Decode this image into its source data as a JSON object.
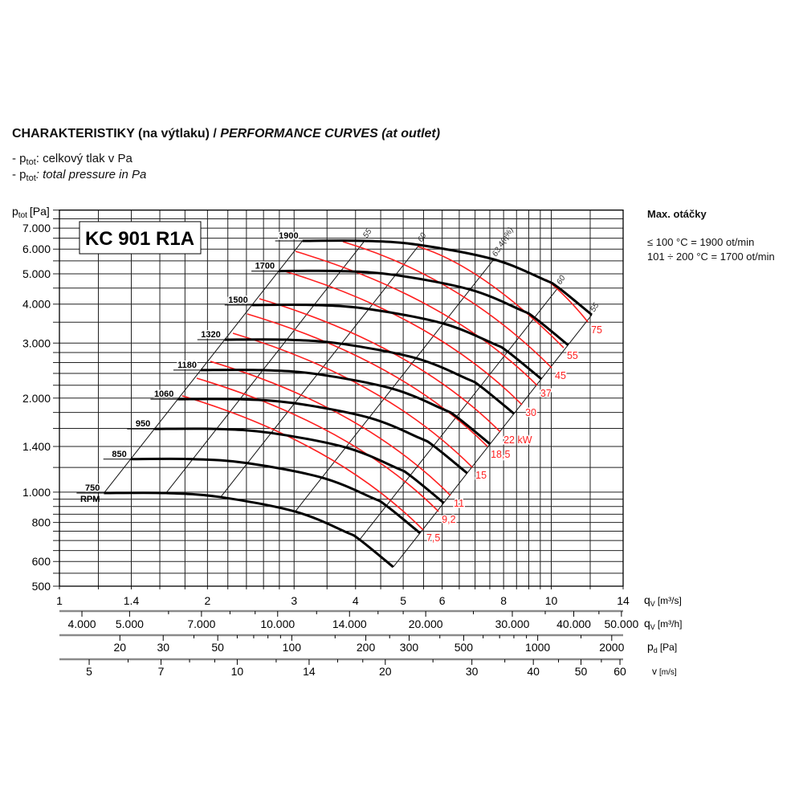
{
  "header": {
    "title_cz": "CHARAKTERISTIKY (na výtlaku) / ",
    "title_en": "PERFORMANCE CURVES (at outlet)",
    "legend_prefix": "- p",
    "legend_sub": "tot",
    "legend_cz": ": celkový tlak v Pa",
    "legend_en": ": total pressure in Pa"
  },
  "max_speed": {
    "title": "Max. otáčky",
    "line1": "≤ 100 °C = 1900 ot/min",
    "line2": "101 ÷ 200 °C = 1700 ot/min"
  },
  "chart_data": {
    "type": "line",
    "title": "KC 901 R1A",
    "colors": {
      "rpm_curve": "#000000",
      "power_curve": "#ff1f1f",
      "grid": "#222222",
      "axis_bar": "#8a8a8a"
    },
    "y_axis": {
      "label": "p",
      "label_sub": "tot",
      "label_unit": "[Pa]",
      "scale": "log",
      "range": [
        500,
        8000
      ],
      "ticks": [
        500,
        600,
        800,
        1000,
        1400,
        2000,
        3000,
        4000,
        5000,
        6000,
        7000
      ],
      "tick_labels": [
        "500",
        "600",
        "800",
        "1.000",
        "1.400",
        "2.000",
        "3.000",
        "4.000",
        "5.000",
        "6.000",
        "7.000"
      ]
    },
    "grid": {
      "on": true,
      "p_lines": [
        500,
        550,
        600,
        650,
        700,
        750,
        800,
        850,
        900,
        950,
        1000,
        1200,
        1400,
        1600,
        1800,
        2000,
        2200,
        2400,
        2600,
        2800,
        3000,
        3500,
        4000,
        4500,
        5000,
        5500,
        6000,
        6500,
        7000,
        7500,
        8000
      ],
      "q_lines": [
        1,
        1.2,
        1.4,
        1.6,
        1.8,
        2,
        2.2,
        2.4,
        2.6,
        2.8,
        3,
        3.5,
        4,
        4.5,
        5,
        5.5,
        6,
        6.5,
        7,
        7.5,
        8,
        8.5,
        9,
        9.5,
        10,
        12,
        14
      ]
    },
    "x_axis": {
      "label": "q",
      "label_sub": "V",
      "label_unit": "[m³/s]",
      "scale": "log",
      "range": [
        1,
        14
      ],
      "ticks": [
        1,
        1.4,
        2,
        3,
        4,
        5,
        6,
        8,
        10,
        14
      ],
      "tick_labels": [
        "1",
        "1.4",
        "2",
        "3",
        "4",
        "5",
        "6",
        "8",
        "10",
        "14"
      ]
    },
    "secondary_axes": {
      "flow_m3h": {
        "label": "q",
        "label_sub": "V",
        "label_unit": "[m³/h]",
        "ticks": [
          4000,
          5000,
          6000,
          7000,
          8000,
          9000,
          10000,
          12000,
          14000,
          16000,
          18000,
          20000,
          25000,
          30000,
          35000,
          40000,
          45000,
          50000
        ],
        "labeled": [
          4000,
          5000,
          7000,
          10000,
          14000,
          20000,
          30000,
          40000,
          50000
        ],
        "tick_labels": [
          "4.000",
          "5.000",
          "7.000",
          "10.000",
          "14.000",
          "20.000",
          "30.000",
          "40.000",
          "50.000"
        ]
      },
      "dynamic_pressure": {
        "label": "p",
        "label_sub": "d",
        "label_unit": "[Pa]",
        "pd_per_v2": 0.6,
        "ticks": [
          20,
          30,
          40,
          50,
          60,
          70,
          80,
          90,
          100,
          150,
          200,
          250,
          300,
          400,
          500,
          600,
          700,
          800,
          900,
          1000,
          1500,
          2000
        ],
        "labeled": [
          20,
          30,
          50,
          100,
          200,
          300,
          500,
          1000,
          2000
        ],
        "tick_labels": [
          "20",
          "30",
          "50",
          "100",
          "200",
          "300",
          "500",
          "1000",
          "2000"
        ]
      },
      "velocity": {
        "label": "v",
        "label_unit": "[m/s]",
        "v_per_qv": 4.35,
        "ticks": [
          5,
          6,
          7,
          8,
          9,
          10,
          12,
          14,
          16,
          18,
          20,
          25,
          30,
          35,
          40,
          45,
          50,
          55,
          60
        ],
        "labeled": [
          5,
          7,
          10,
          14,
          20,
          30,
          40,
          50,
          60
        ],
        "tick_labels": [
          "5",
          "7",
          "10",
          "14",
          "20",
          "30",
          "40",
          "50",
          "60"
        ]
      }
    },
    "rpm_curves": {
      "base_rpm": 1900,
      "base_points": [
        [
          3.12,
          6374
        ],
        [
          4.173,
          6374
        ],
        [
          5.39,
          6188
        ],
        [
          7.64,
          5562
        ],
        [
          9.65,
          4797
        ],
        [
          10.33,
          4521
        ],
        [
          12.09,
          3696
        ]
      ],
      "rpms": [
        750,
        850,
        950,
        1060,
        1180,
        1320,
        1500,
        1700,
        1900
      ],
      "labels": [
        "750",
        "850",
        "950",
        "1060",
        "1180",
        "1320",
        "1500",
        "1700",
        "1900"
      ],
      "unit_label": "RPM"
    },
    "efficiency_lines": [
      {
        "label": "",
        "q": 3.12,
        "p": 6374
      },
      {
        "label": "55",
        "q": 4.173,
        "p": 6374
      },
      {
        "label": "60",
        "q": 5.39,
        "p": 6188
      },
      {
        "label": "63,4(η%)",
        "q": 7.64,
        "p": 5562
      },
      {
        "label": "60",
        "q": 10.33,
        "p": 4521
      },
      {
        "label": "55",
        "q": 12.09,
        "p": 3696
      }
    ],
    "power_curves": [
      {
        "kw": 7.5,
        "label": "7,5",
        "start": [
          1.777,
          2034
        ],
        "end": [
          5.49,
          757
        ]
      },
      {
        "kw": 9.2,
        "label": "9,2",
        "start": [
          1.902,
          2316
        ],
        "end": [
          5.9,
          867
        ]
      },
      {
        "kw": 11,
        "label": "11",
        "start": [
          2.027,
          2622
        ],
        "end": [
          6.24,
          976
        ]
      },
      {
        "kw": 15,
        "label": "15",
        "start": [
          2.253,
          3226
        ],
        "end": [
          6.91,
          1201
        ]
      },
      {
        "kw": 18.5,
        "label": "18,5",
        "start": [
          2.41,
          3719
        ],
        "end": [
          7.42,
          1400
        ]
      },
      {
        "kw": 22,
        "label": "22 kW",
        "start": [
          2.55,
          4162
        ],
        "end": [
          7.88,
          1558
        ]
      },
      {
        "kw": 30,
        "label": "30",
        "start": [
          2.843,
          5120
        ],
        "end": [
          8.72,
          1905
        ]
      },
      {
        "kw": 37,
        "label": "37",
        "start": [
          3.02,
          5900
        ],
        "end": [
          9.36,
          2196
        ]
      },
      {
        "kw": 45,
        "label": "45",
        "start": [
          3.77,
          6335
        ],
        "end": [
          10.02,
          2501
        ]
      },
      {
        "kw": 55,
        "label": "55",
        "start": [
          5.35,
          6115
        ],
        "end": [
          10.6,
          2900
        ]
      },
      {
        "kw": 75,
        "label": "75",
        "start": [
          9.76,
          4797
        ],
        "end": [
          11.87,
          3506
        ]
      }
    ]
  }
}
